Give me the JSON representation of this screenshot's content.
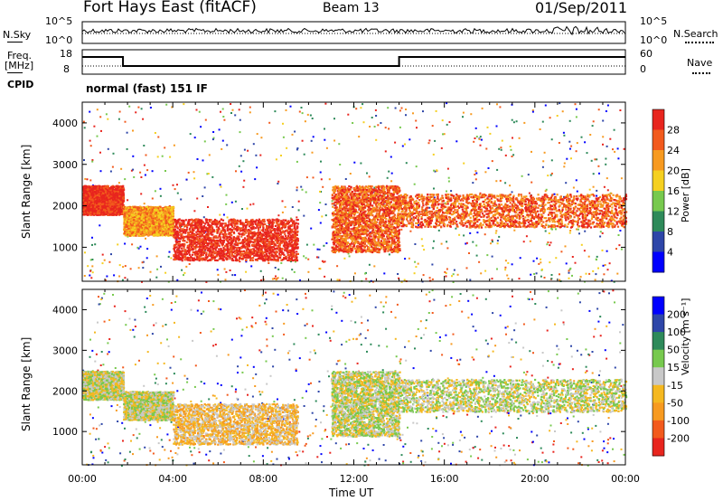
{
  "header": {
    "station": "Fort Hays East (fitACF)",
    "beam": "Beam 13",
    "date": "01/Sep/2011"
  },
  "noise_panel": {
    "left_label": "N.Sky",
    "right_label": "N.Search",
    "y_ticks": [
      "10^5",
      "10^0"
    ]
  },
  "freq_panel": {
    "left_label_1": "Freq.",
    "left_label_2": "[MHz]",
    "right_label": "Nave",
    "left_ticks": [
      "18",
      "8"
    ],
    "right_ticks": [
      "60",
      "0"
    ]
  },
  "cpid": {
    "label": "CPID",
    "value": "normal (fast) 151 IF"
  },
  "colors": {
    "power": [
      "#0000ff",
      "#2e46a8",
      "#2e8a5a",
      "#77c94e",
      "#f5d020",
      "#f79a20",
      "#f25a1d",
      "#e8251e"
    ],
    "velocity": [
      "#0000ff",
      "#2e46a8",
      "#2e8a5a",
      "#77c94e",
      "#c8c8c8",
      "#f5b820",
      "#f79a20",
      "#f25a1d",
      "#e8251e"
    ]
  },
  "chart_data": [
    {
      "type": "heatmap",
      "name": "power",
      "ylabel": "Slant Range [km]",
      "ylim": [
        180,
        4500
      ],
      "y_ticks": [
        1000,
        2000,
        3000,
        4000
      ],
      "xlim": [
        0,
        24
      ],
      "colorbar": {
        "label": "Power [dB]",
        "ticks": [
          "4",
          "8",
          "12",
          "16",
          "20",
          "24",
          "28"
        ],
        "range": [
          0,
          32
        ]
      },
      "regions": [
        {
          "t0": 0.0,
          "t1": 1.8,
          "r0": 1800,
          "r1": 2500,
          "level": 7
        },
        {
          "t0": 1.8,
          "t1": 4.0,
          "r0": 1300,
          "r1": 2000,
          "level": 5
        },
        {
          "t0": 4.0,
          "t1": 9.5,
          "r0": 700,
          "r1": 1700,
          "level": 7
        },
        {
          "t0": 11.0,
          "t1": 14.0,
          "r0": 900,
          "r1": 2500,
          "level": 6
        },
        {
          "t0": 14.0,
          "t1": 24.0,
          "r0": 1500,
          "r1": 2300,
          "level": 6
        }
      ]
    },
    {
      "type": "heatmap",
      "name": "velocity",
      "xlabel": "Time UT",
      "ylabel": "Slant Range [km]",
      "ylim": [
        180,
        4500
      ],
      "y_ticks": [
        1000,
        2000,
        3000,
        4000
      ],
      "xlim": [
        0,
        24
      ],
      "x_ticks": [
        "00:00",
        "04:00",
        "08:00",
        "12:00",
        "16:00",
        "20:00",
        "00:00"
      ],
      "colorbar": {
        "label": "Velocity [m s⁻¹]",
        "ticks": [
          "200",
          "100",
          "50",
          "15",
          "-15",
          "-50",
          "-100",
          "-200"
        ]
      },
      "regions": [
        {
          "t0": 0.0,
          "t1": 1.8,
          "r0": 1800,
          "r1": 2500,
          "level": 4
        },
        {
          "t0": 1.8,
          "t1": 4.0,
          "r0": 1300,
          "r1": 2000,
          "level": 4
        },
        {
          "t0": 4.0,
          "t1": 9.5,
          "r0": 700,
          "r1": 1700,
          "level": 5
        },
        {
          "t0": 11.0,
          "t1": 14.0,
          "r0": 900,
          "r1": 2500,
          "level": 4
        },
        {
          "t0": 14.0,
          "t1": 24.0,
          "r0": 1500,
          "r1": 2300,
          "level": 4
        }
      ]
    }
  ]
}
